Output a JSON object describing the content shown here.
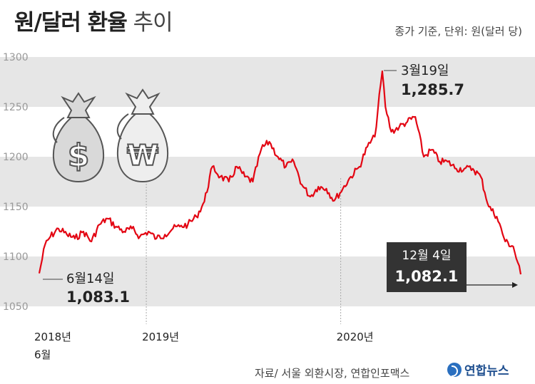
{
  "header": {
    "title_bold": "원/달러 환율",
    "title_light": "추이",
    "unit_note": "종가 기준, 단위: 원(달러 당)"
  },
  "footer": {
    "source": "자료/ 서울 외환시장, 연합인포맥스",
    "logo_text": "연합뉴스"
  },
  "colors": {
    "line": "#e30613",
    "band": "#e6e6e6",
    "dark_box": "#333333",
    "grid_text": "#999999"
  },
  "icons": [
    "dollar-money-bag-icon",
    "won-money-bag-icon"
  ],
  "chart_data": {
    "type": "line",
    "title": "원/달러 환율 추이",
    "ylabel": "",
    "xlabel": "",
    "ylim": [
      1050,
      1300
    ],
    "yticks": [
      "1300",
      "1250",
      "1200",
      "1150",
      "1100",
      "1050"
    ],
    "xticks": [
      {
        "label": "2018년",
        "sub": "6월",
        "x": "2018-06"
      },
      {
        "label": "2019년",
        "sub": "",
        "x": "2019-01"
      },
      {
        "label": "2020년",
        "sub": "",
        "x": "2020-01"
      }
    ],
    "series": [
      {
        "name": "",
        "x": [
          "2018-06-14",
          "2018-06-25",
          "2018-07-05",
          "2018-07-20",
          "2018-08-05",
          "2018-08-20",
          "2018-09-05",
          "2018-09-20",
          "2018-10-05",
          "2018-10-20",
          "2018-11-05",
          "2018-11-20",
          "2018-12-05",
          "2018-12-20",
          "2019-01-05",
          "2019-01-20",
          "2019-02-05",
          "2019-02-20",
          "2019-03-05",
          "2019-03-20",
          "2019-04-05",
          "2019-04-20",
          "2019-05-05",
          "2019-05-20",
          "2019-06-05",
          "2019-06-20",
          "2019-07-05",
          "2019-07-20",
          "2019-08-05",
          "2019-08-20",
          "2019-09-05",
          "2019-09-20",
          "2019-10-05",
          "2019-10-20",
          "2019-11-05",
          "2019-11-20",
          "2019-12-05",
          "2019-12-20",
          "2020-01-05",
          "2020-01-20",
          "2020-02-05",
          "2020-02-20",
          "2020-03-05",
          "2020-03-19",
          "2020-03-25",
          "2020-04-05",
          "2020-04-20",
          "2020-05-05",
          "2020-05-20",
          "2020-06-05",
          "2020-06-20",
          "2020-07-05",
          "2020-07-20",
          "2020-08-05",
          "2020-08-20",
          "2020-09-05",
          "2020-09-20",
          "2020-10-05",
          "2020-10-20",
          "2020-11-05",
          "2020-11-20",
          "2020-12-04"
        ],
        "values": [
          1083.1,
          1112,
          1120,
          1128,
          1122,
          1118,
          1125,
          1115,
          1132,
          1138,
          1130,
          1125,
          1128,
          1120,
          1125,
          1118,
          1122,
          1128,
          1130,
          1132,
          1140,
          1155,
          1190,
          1180,
          1175,
          1190,
          1180,
          1175,
          1208,
          1215,
          1200,
          1190,
          1195,
          1172,
          1160,
          1170,
          1168,
          1156,
          1168,
          1180,
          1190,
          1210,
          1220,
          1285.7,
          1250,
          1225,
          1230,
          1235,
          1240,
          1200,
          1207,
          1195,
          1195,
          1188,
          1188,
          1188,
          1180,
          1150,
          1140,
          1115,
          1110,
          1082.1
        ]
      }
    ],
    "annotations": [
      {
        "date": "6월14일",
        "value": "1,083.1"
      },
      {
        "date": "3월19일",
        "value": "1,285.7"
      },
      {
        "date": "12월 4일",
        "value": "1,082.1"
      }
    ],
    "grid": false,
    "legend": "none"
  }
}
